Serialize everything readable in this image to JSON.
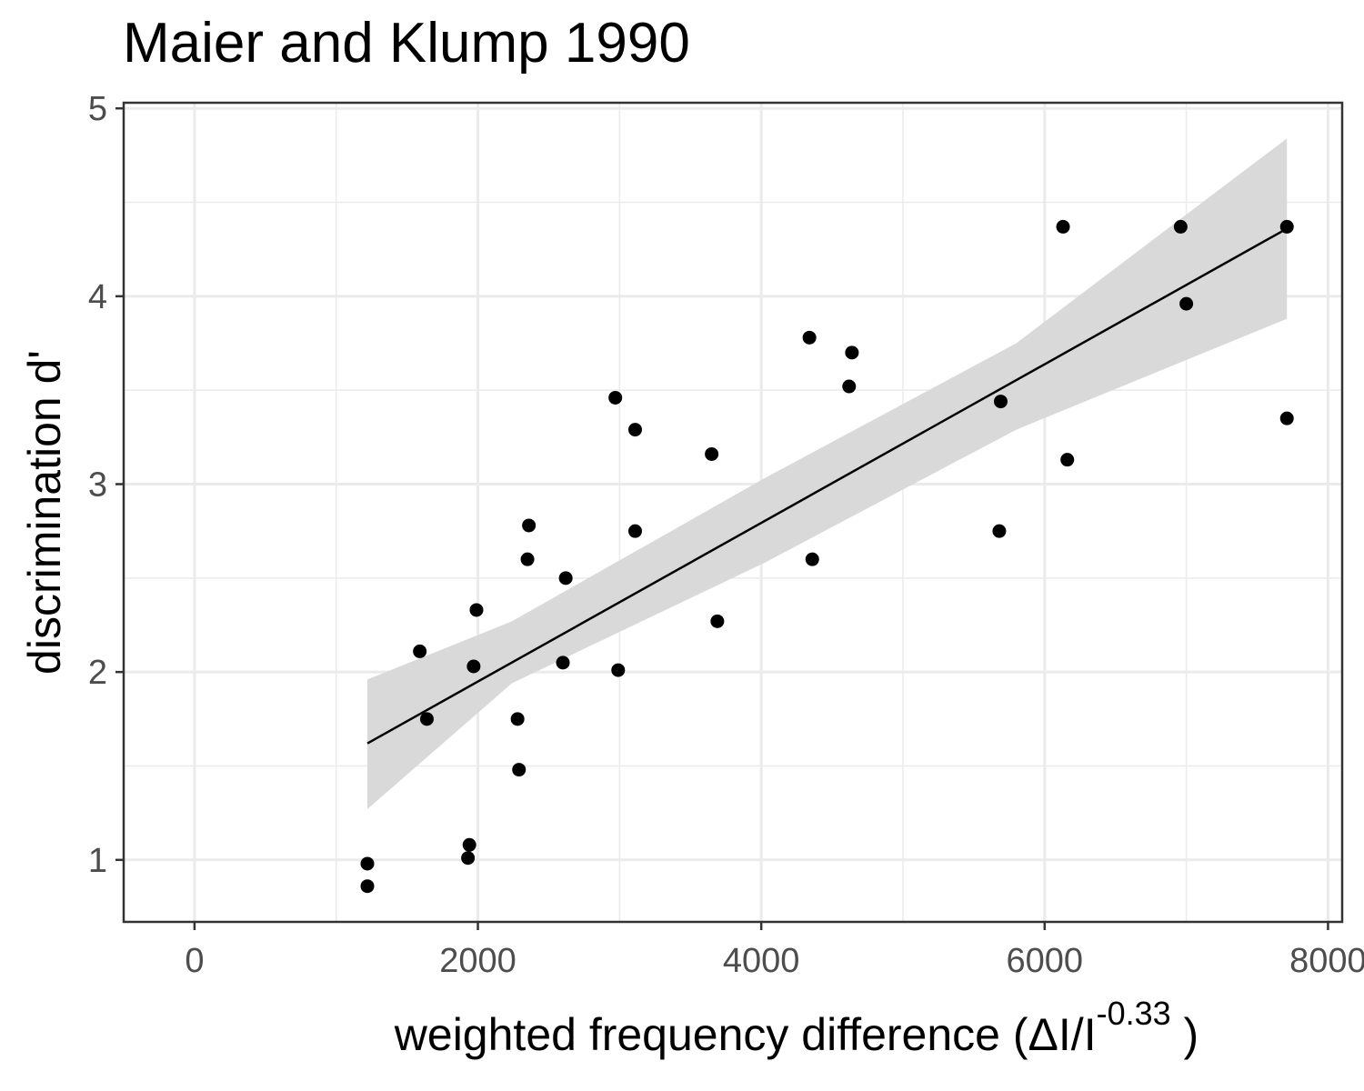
{
  "chart_data": {
    "type": "scatter",
    "title": "Maier and Klump 1990",
    "xlabel": {
      "main": "weighted  frequency  difference (ΔI/I",
      "superscript": "-0.33",
      "close": " )"
    },
    "ylabel": "discrimination d'",
    "xlim": [
      -500,
      8100
    ],
    "ylim": [
      0.67,
      5.03
    ],
    "x_ticks": [
      0,
      2000,
      4000,
      6000,
      8000
    ],
    "x_tick_labels": [
      "0",
      "2000",
      "4000",
      "6000",
      "8000"
    ],
    "y_ticks": [
      1,
      2,
      3,
      4,
      5
    ],
    "y_tick_labels": [
      "1",
      "2",
      "3",
      "4",
      "5"
    ],
    "grid": true,
    "points": [
      {
        "x": 1220,
        "y": 0.98
      },
      {
        "x": 1220,
        "y": 0.86
      },
      {
        "x": 1590,
        "y": 2.11
      },
      {
        "x": 1640,
        "y": 1.75
      },
      {
        "x": 1930,
        "y": 1.01
      },
      {
        "x": 1940,
        "y": 1.08
      },
      {
        "x": 1970,
        "y": 2.03
      },
      {
        "x": 1990,
        "y": 2.33
      },
      {
        "x": 2280,
        "y": 1.75
      },
      {
        "x": 2290,
        "y": 1.48
      },
      {
        "x": 2350,
        "y": 2.6
      },
      {
        "x": 2360,
        "y": 2.78
      },
      {
        "x": 2600,
        "y": 2.05
      },
      {
        "x": 2620,
        "y": 2.5
      },
      {
        "x": 2970,
        "y": 3.46
      },
      {
        "x": 2990,
        "y": 2.01
      },
      {
        "x": 3110,
        "y": 3.29
      },
      {
        "x": 3110,
        "y": 2.75
      },
      {
        "x": 3650,
        "y": 3.16
      },
      {
        "x": 3690,
        "y": 2.27
      },
      {
        "x": 4340,
        "y": 3.78
      },
      {
        "x": 4360,
        "y": 2.6
      },
      {
        "x": 4620,
        "y": 3.52
      },
      {
        "x": 4640,
        "y": 3.7
      },
      {
        "x": 5680,
        "y": 2.75
      },
      {
        "x": 5690,
        "y": 3.44
      },
      {
        "x": 6130,
        "y": 4.37
      },
      {
        "x": 6160,
        "y": 3.13
      },
      {
        "x": 6960,
        "y": 4.37
      },
      {
        "x": 7000,
        "y": 3.96
      },
      {
        "x": 7710,
        "y": 4.37
      },
      {
        "x": 7710,
        "y": 3.35
      }
    ],
    "fit_line": {
      "x": [
        1220,
        7710
      ],
      "y": [
        1.62,
        4.36
      ]
    },
    "confidence_band": {
      "x": [
        1220,
        2240,
        4020,
        5800,
        7710
      ],
      "upper": [
        1.96,
        2.27,
        3.03,
        3.75,
        4.84
      ],
      "lower": [
        1.27,
        1.94,
        2.58,
        3.29,
        3.88
      ]
    },
    "colors": {
      "points": "#000000",
      "line": "#000000",
      "band": "#d9d9d9",
      "grid": "#ebebeb",
      "panel_border": "#333333",
      "tick_text": "#4d4d4d"
    }
  }
}
